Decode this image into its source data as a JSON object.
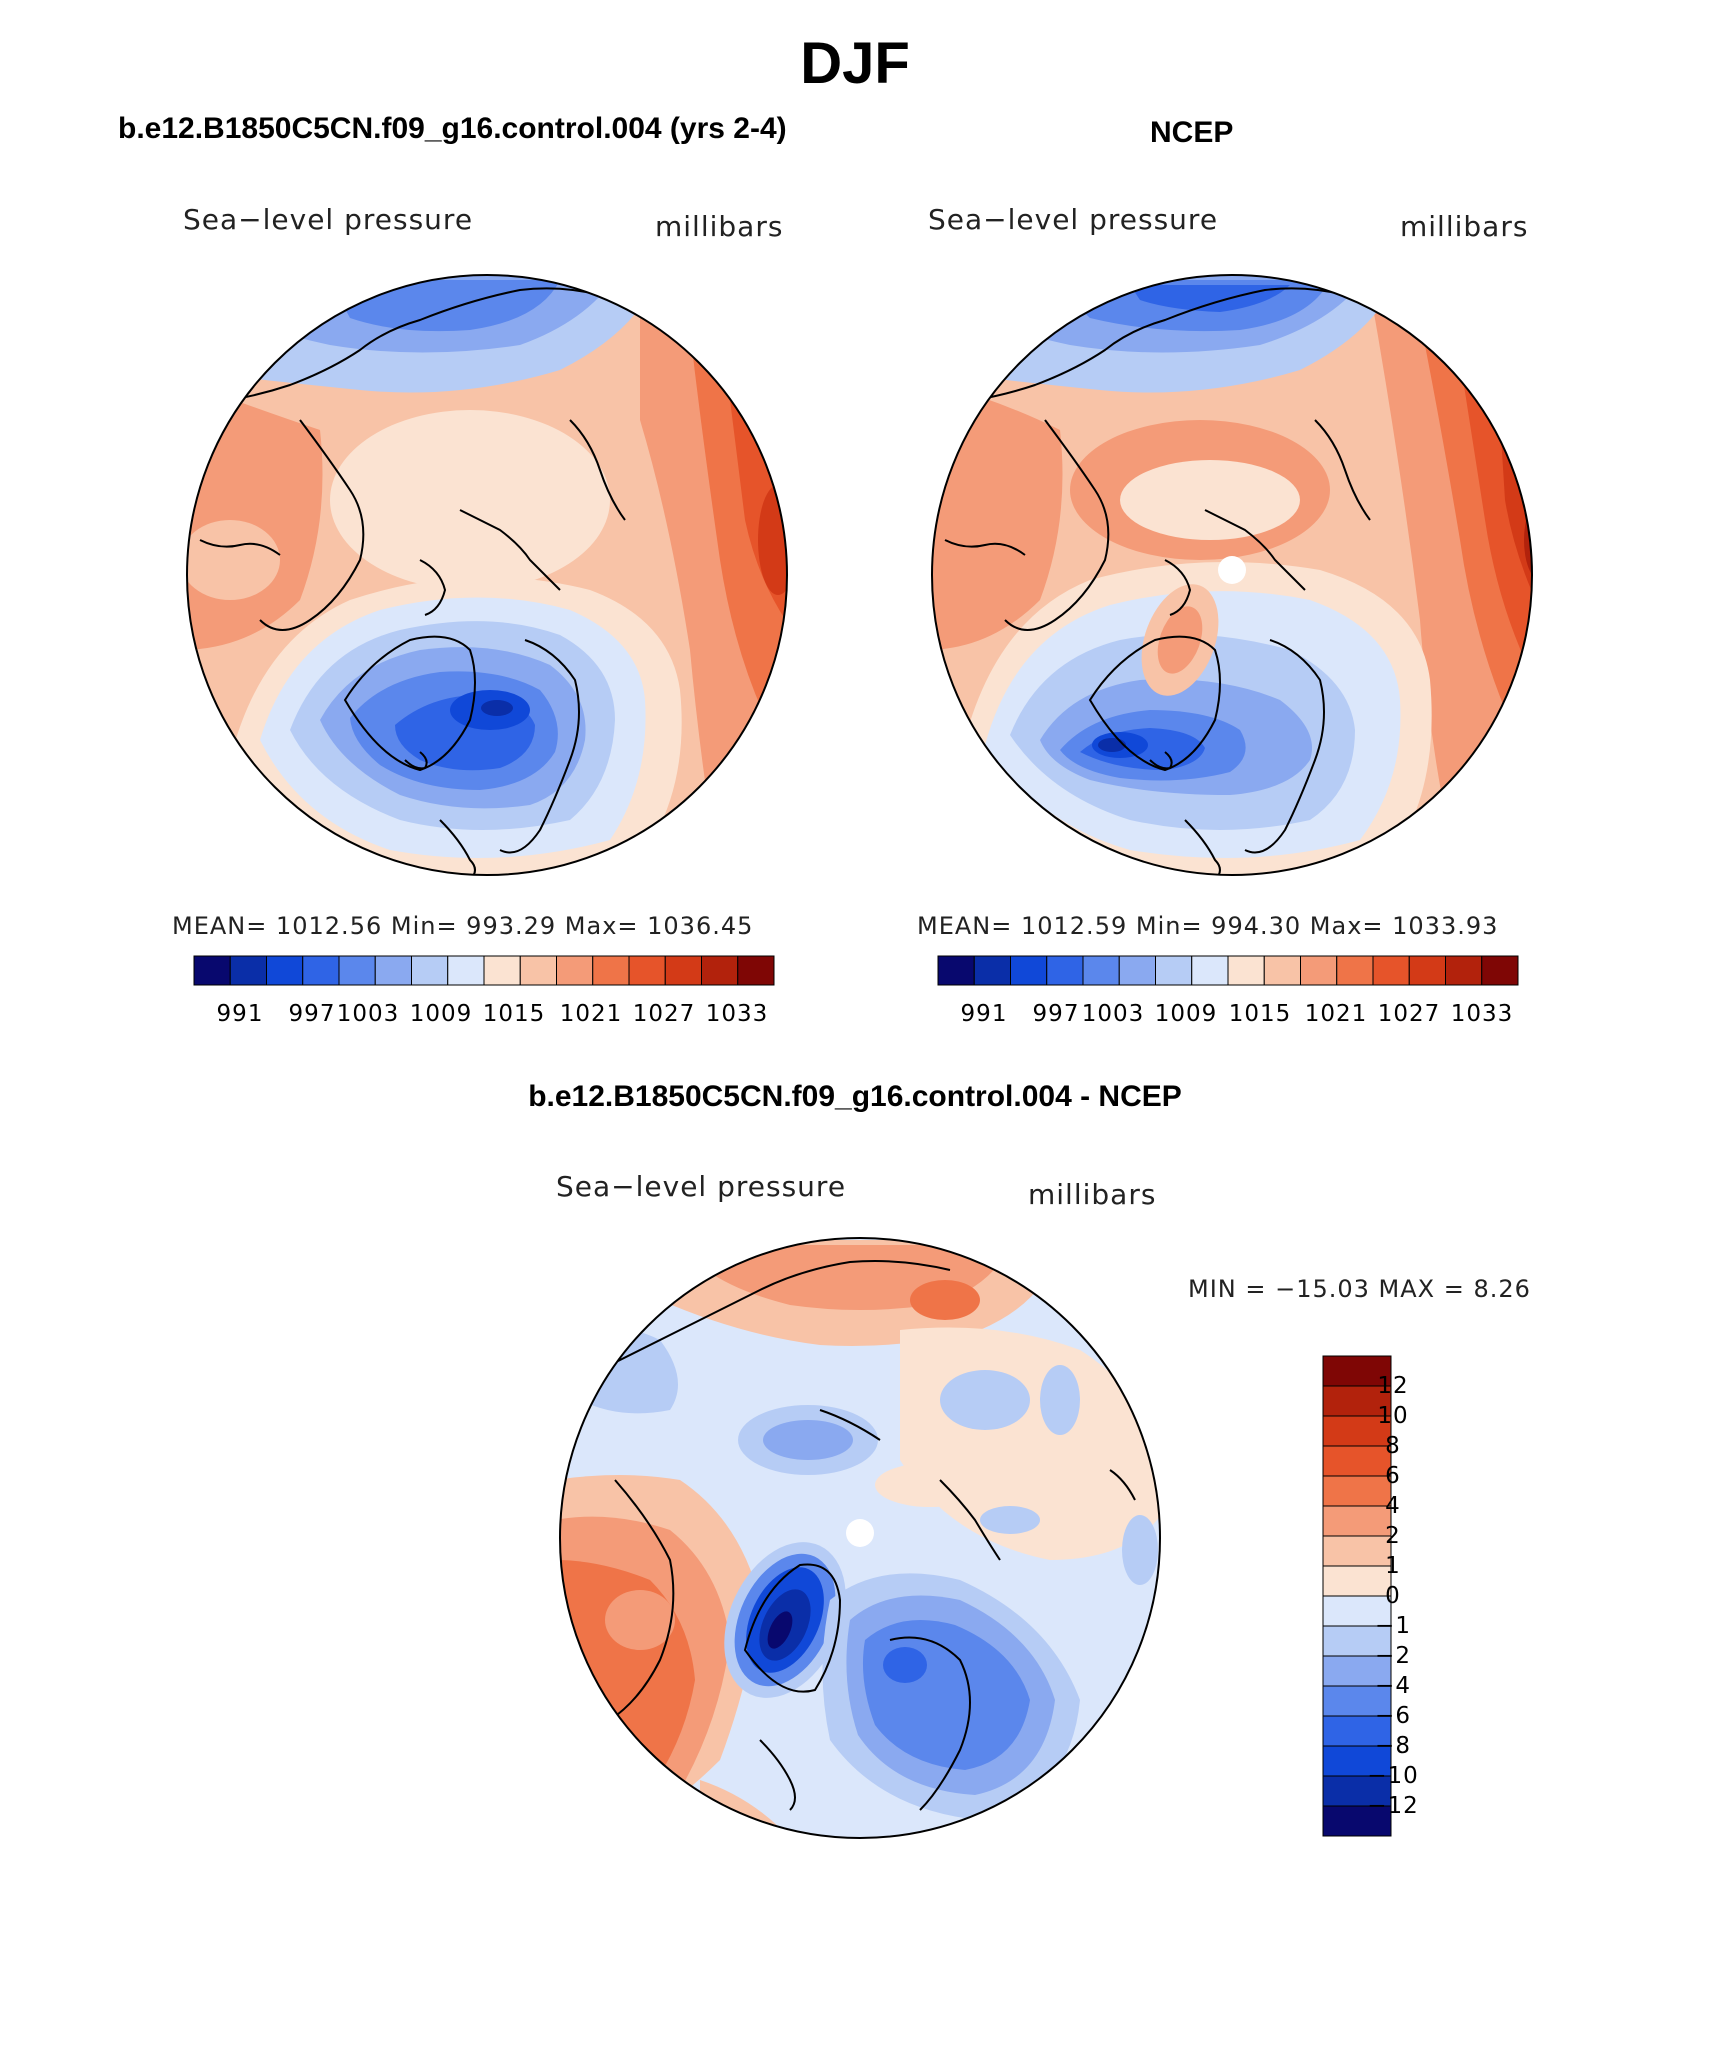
{
  "figure_title": "DJF",
  "panels": [
    {
      "id": "model",
      "title": "b.e12.B1850C5CN.f09_g16.control.004 (yrs 2-4)",
      "variable": "Sea−level pressure",
      "units": "millibars",
      "stats": "MEAN= 1012.56   Min= 993.29   Max= 1036.45",
      "colorbar_labels": [
        "991",
        "997",
        "1003",
        "1009",
        "1015",
        "1021",
        "1027",
        "1033"
      ]
    },
    {
      "id": "ncep",
      "title": "NCEP",
      "variable": "Sea−level pressure",
      "units": "millibars",
      "stats": "MEAN= 1012.59   Min= 994.30   Max= 1033.93",
      "colorbar_labels": [
        "991",
        "997",
        "1003",
        "1009",
        "1015",
        "1021",
        "1027",
        "1033"
      ]
    },
    {
      "id": "difference",
      "title": "b.e12.B1850C5CN.f09_g16.control.004 - NCEP",
      "variable": "Sea−level pressure",
      "units": "millibars",
      "stats": "MIN = −15.03 MAX =    8.26",
      "colorbar_labels": [
        "12",
        "10",
        "8",
        "6",
        "4",
        "2",
        "1",
        "0",
        "−1",
        "−2",
        "−4",
        "−6",
        "−8",
        "−10",
        "−12"
      ]
    }
  ],
  "colors": {
    "abs_scale": [
      "#08086e",
      "#0a2ea8",
      "#1048d8",
      "#2f64e6",
      "#5b87ec",
      "#8aa9f0",
      "#b6ccf5",
      "#dbe7fb",
      "#fbe3d2",
      "#f8c3a7",
      "#f49b78",
      "#ef7448",
      "#e6542a",
      "#d33a17",
      "#b2220c",
      "#7f0605"
    ],
    "diff_scale": [
      "#7f0605",
      "#b2220c",
      "#d33a17",
      "#e6542a",
      "#ef7448",
      "#f49b78",
      "#f8c3a7",
      "#fbe3d2",
      "#dbe7fb",
      "#b6ccf5",
      "#8aa9f0",
      "#5b87ec",
      "#2f64e6",
      "#1048d8",
      "#0a2ea8",
      "#08086e"
    ]
  }
}
